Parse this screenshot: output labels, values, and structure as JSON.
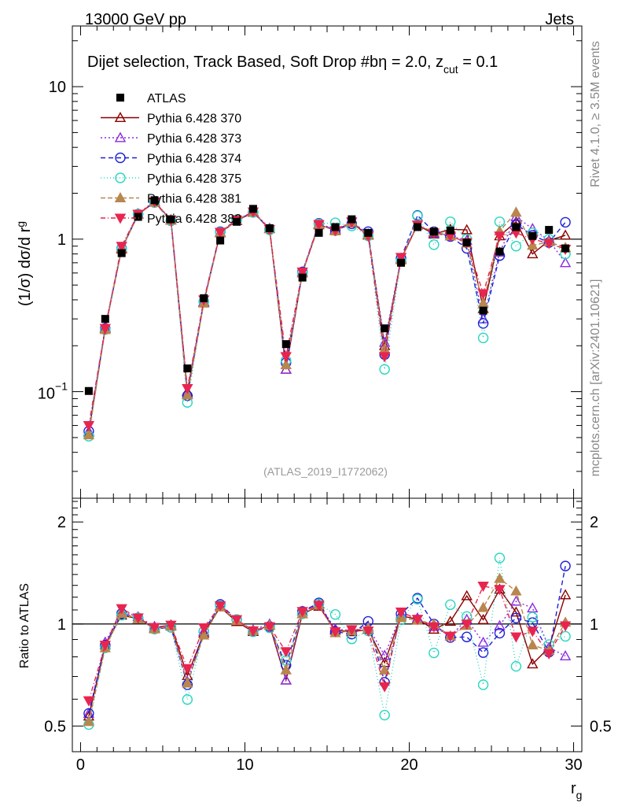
{
  "header": {
    "left": "13000 GeV pp",
    "right": "Jets"
  },
  "side_labels": {
    "rivet": "Rivet 4.1.0, ≥ 3.5M events",
    "mcplots": "mcplots.cern.ch [arXiv:2401.10621]"
  },
  "reference": "(ATLAS_2019_I1772062)",
  "chart_data": {
    "type": "line",
    "title": "Dijet selection, Track Based, Soft Drop #bη = 2.0, z",
    "title_sub": "cut",
    "title_tail": " = 0.1",
    "ylabel": "(1/σ) dσ/d r",
    "ylabel_sub": "g",
    "xlabel": "r",
    "xlabel_sub": "g",
    "ratio_ylabel": "Ratio to ATLAS",
    "yscale": "log",
    "xlim": [
      -0.5,
      30.5
    ],
    "ylim": [
      0.02,
      25
    ],
    "ratio_ylim": [
      0.42,
      2.35
    ],
    "x_ticks": [
      "0",
      "10",
      "20",
      "30"
    ],
    "y_ticks": [
      "10",
      "1"
    ],
    "y_tick_min": {
      "base": "10",
      "exp": "−1"
    },
    "ratio_ticks": [
      "2",
      "1",
      "0.5"
    ],
    "x": [
      0.5,
      1.5,
      2.5,
      3.5,
      4.5,
      5.5,
      6.5,
      7.5,
      8.5,
      9.5,
      10.5,
      11.5,
      12.5,
      13.5,
      14.5,
      15.5,
      16.5,
      17.5,
      18.5,
      19.5,
      20.5,
      21.5,
      22.5,
      23.5,
      24.5,
      25.5,
      26.5,
      27.5,
      28.5,
      29.5
    ],
    "data": {
      "name": "ATLAS",
      "values": [
        0.101,
        0.3,
        0.81,
        1.4,
        1.8,
        1.35,
        0.142,
        0.41,
        0.98,
        1.3,
        1.58,
        1.18,
        0.205,
        0.56,
        1.1,
        1.2,
        1.35,
        1.1,
        0.26,
        0.7,
        1.2,
        1.12,
        1.14,
        0.95,
        0.34,
        0.83,
        1.2,
        1.05,
        1.15,
        0.87
      ]
    },
    "series": [
      {
        "name": "Pythia 6.428 370",
        "color": "#8b0000",
        "marker": "triangle-open",
        "dash": "",
        "values": [
          0.054,
          0.26,
          0.86,
          1.45,
          1.75,
          1.34,
          0.1,
          0.385,
          1.1,
          1.32,
          1.5,
          1.17,
          0.14,
          0.6,
          1.24,
          1.15,
          1.28,
          1.06,
          0.2,
          0.74,
          1.24,
          1.08,
          1.16,
          1.15,
          0.35,
          1.05,
          1.3,
          0.8,
          0.98,
          1.06
        ]
      },
      {
        "name": "Pythia 6.428 373",
        "color": "#8a2be2",
        "marker": "triangle-open",
        "dash": "2,3",
        "values": [
          0.055,
          0.265,
          0.88,
          1.47,
          1.77,
          1.33,
          0.096,
          0.39,
          1.11,
          1.33,
          1.52,
          1.18,
          0.14,
          0.61,
          1.26,
          1.16,
          1.29,
          1.08,
          0.21,
          0.75,
          1.25,
          1.1,
          1.05,
          0.98,
          0.3,
          0.82,
          1.4,
          1.17,
          0.98,
          0.7
        ]
      },
      {
        "name": "Pythia 6.428 374",
        "color": "#1f1fd6",
        "marker": "circle-open",
        "dash": "6,4",
        "values": [
          0.055,
          0.26,
          0.87,
          1.46,
          1.74,
          1.32,
          0.094,
          0.39,
          1.12,
          1.34,
          1.5,
          1.16,
          0.155,
          0.61,
          1.27,
          1.14,
          1.26,
          1.12,
          0.175,
          0.75,
          1.43,
          1.12,
          1.04,
          0.87,
          0.28,
          0.78,
          1.25,
          1.06,
          0.95,
          1.29
        ]
      },
      {
        "name": "Pythia 6.428 375",
        "color": "#2ad6c0",
        "marker": "circle-open",
        "dash": "1,3",
        "values": [
          0.051,
          0.255,
          0.86,
          1.46,
          1.74,
          1.32,
          0.085,
          0.39,
          1.11,
          1.34,
          1.5,
          1.15,
          0.16,
          0.6,
          1.26,
          1.28,
          1.22,
          1.05,
          0.14,
          0.72,
          1.42,
          0.92,
          1.3,
          1.0,
          0.225,
          1.3,
          0.9,
          1.1,
          1.0,
          0.8
        ]
      },
      {
        "name": "Pythia 6.428 381",
        "color": "#b8864e",
        "marker": "triangle-filled",
        "dash": "6,3",
        "values": [
          0.052,
          0.255,
          0.87,
          1.45,
          1.74,
          1.33,
          0.095,
          0.38,
          1.1,
          1.33,
          1.51,
          1.17,
          0.15,
          0.6,
          1.25,
          1.13,
          1.29,
          1.07,
          0.19,
          0.73,
          1.23,
          1.12,
          1.05,
          0.94,
          0.38,
          1.13,
          1.5,
          0.91,
          0.96,
          0.88
        ]
      },
      {
        "name": "Pythia 6.428 382",
        "color": "#e8254f",
        "marker": "triangle-down-filled",
        "dash": "6,3,1,3",
        "values": [
          0.06,
          0.26,
          0.9,
          1.46,
          1.76,
          1.34,
          0.105,
          0.4,
          1.11,
          1.34,
          1.51,
          1.16,
          0.17,
          0.61,
          1.25,
          1.14,
          1.3,
          1.05,
          0.17,
          0.76,
          1.24,
          1.1,
          1.05,
          0.95,
          0.44,
          1.05,
          1.1,
          1.0,
          0.94,
          0.86
        ]
      }
    ]
  }
}
